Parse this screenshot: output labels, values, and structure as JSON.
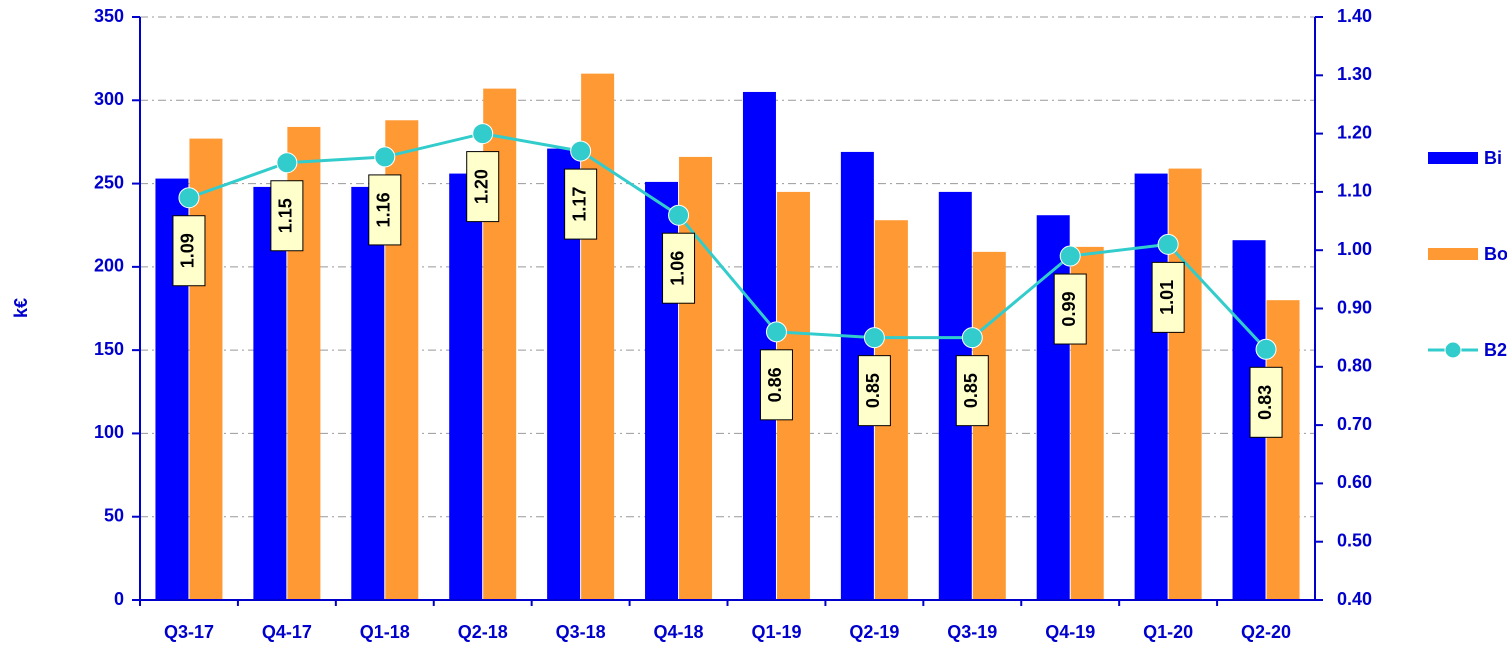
{
  "chart_data": {
    "type": "bar",
    "y_label": "k€",
    "categories": [
      "Q3-17",
      "Q4-17",
      "Q1-18",
      "Q2-18",
      "Q3-18",
      "Q4-18",
      "Q1-19",
      "Q2-19",
      "Q3-19",
      "Q4-19",
      "Q1-20",
      "Q2-20"
    ],
    "series": [
      {
        "name": "Bi",
        "type": "bar",
        "color": "#0000ff",
        "values": [
          253,
          248,
          248,
          256,
          271,
          251,
          305,
          269,
          245,
          231,
          256,
          216
        ]
      },
      {
        "name": "Bo",
        "type": "bar",
        "color": "#ff9933",
        "values": [
          277,
          284,
          288,
          307,
          316,
          266,
          245,
          228,
          209,
          212,
          259,
          180
        ]
      },
      {
        "name": "B2",
        "type": "line",
        "axis": "y2",
        "color": "#33cccc",
        "values": [
          1.09,
          1.15,
          1.16,
          1.2,
          1.17,
          1.06,
          0.86,
          0.85,
          0.85,
          0.99,
          1.01,
          0.83
        ],
        "value_labels": [
          "1.09",
          "1.15",
          "1.16",
          "1.20",
          "1.17",
          "1.06",
          "0.86",
          "0.85",
          "0.85",
          "0.99",
          "1.01",
          "0.83"
        ]
      }
    ],
    "ylim": [
      0,
      350
    ],
    "yticks": [
      0,
      50,
      100,
      150,
      200,
      250,
      300,
      350
    ],
    "y2lim": [
      0.4,
      1.4
    ],
    "y2ticks": [
      {
        "value": 0.4,
        "label": "0.40"
      },
      {
        "value": 0.5,
        "label": "0.50"
      },
      {
        "value": 0.6,
        "label": "0.60"
      },
      {
        "value": 0.7,
        "label": "0.70"
      },
      {
        "value": 0.8,
        "label": "0.80"
      },
      {
        "value": 0.9,
        "label": "0.90"
      },
      {
        "value": 1.0,
        "label": "1.00"
      },
      {
        "value": 1.1,
        "label": "1.10"
      },
      {
        "value": 1.2,
        "label": "1.20"
      },
      {
        "value": 1.3,
        "label": "1.30"
      },
      {
        "value": 1.4,
        "label": "1.40"
      }
    ],
    "grid": true,
    "legend": "right"
  }
}
